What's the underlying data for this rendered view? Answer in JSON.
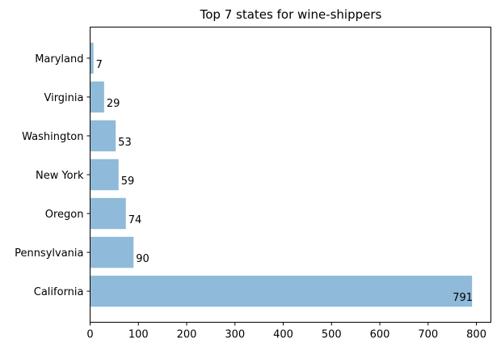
{
  "chart_data": {
    "type": "bar",
    "orientation": "horizontal",
    "title": "Top 7 states for wine-shippers",
    "xlabel": "",
    "ylabel": "",
    "categories": [
      "California",
      "Pennsylvania",
      "Oregon",
      "New York",
      "Washington",
      "Virginia",
      "Maryland"
    ],
    "values": [
      791,
      90,
      74,
      59,
      53,
      29,
      7
    ],
    "value_labels": [
      "791",
      "90",
      "74",
      "59",
      "53",
      "29",
      "7"
    ],
    "xlim": [
      0,
      830
    ],
    "xticks": [
      0,
      100,
      200,
      300,
      400,
      500,
      600,
      700,
      800
    ],
    "xtick_labels": [
      "0",
      "100",
      "200",
      "300",
      "400",
      "500",
      "600",
      "700",
      "800"
    ],
    "grid": false,
    "legend": "none",
    "bar_color": "#8fbad9"
  }
}
